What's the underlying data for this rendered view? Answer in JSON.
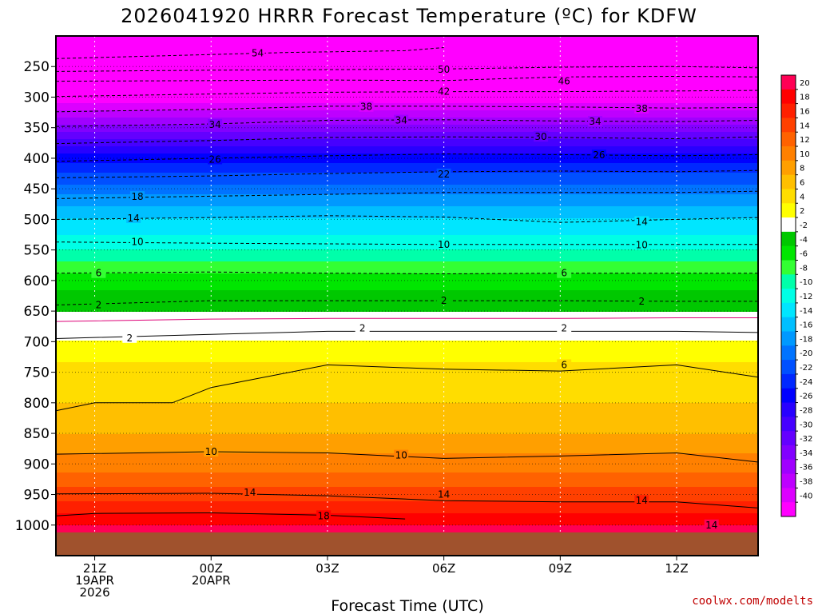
{
  "chart_data": {
    "type": "heatmap",
    "title": "2026041920 HRRR Forecast Temperature (ºC) for KDFW",
    "xlabel": "Forecast Time (UTC)",
    "ylabel": "",
    "credit": "coolwx.com/modelts",
    "x_range_hours": [
      -1,
      17.1
    ],
    "pressure_range_hpa": [
      1050,
      200
    ],
    "ground_pressure_hpa": 1012,
    "y_ticks": [
      250,
      300,
      350,
      400,
      450,
      500,
      550,
      600,
      650,
      700,
      750,
      800,
      850,
      900,
      950,
      1000
    ],
    "x_ticks": [
      {
        "hour": 0,
        "line1": "21Z",
        "line2": "19APR",
        "line3": "2026"
      },
      {
        "hour": 3,
        "line1": "00Z",
        "line2": "20APR",
        "line3": ""
      },
      {
        "hour": 6,
        "line1": "03Z",
        "line2": "",
        "line3": ""
      },
      {
        "hour": 9,
        "line1": "06Z",
        "line2": "",
        "line3": ""
      },
      {
        "hour": 12,
        "line1": "09Z",
        "line2": "",
        "line3": ""
      },
      {
        "hour": 15,
        "line1": "12Z",
        "line2": "",
        "line3": ""
      }
    ],
    "temperature_profile": [
      {
        "p": 1000,
        "t": 20
      },
      {
        "p": 950,
        "t": 15
      },
      {
        "p": 900,
        "t": 11
      },
      {
        "p": 850,
        "t": 8
      },
      {
        "p": 800,
        "t": 6
      },
      {
        "p": 750,
        "t": 5
      },
      {
        "p": 700,
        "t": 2
      },
      {
        "p": 670,
        "t": 0
      },
      {
        "p": 650,
        "t": -2
      },
      {
        "p": 600,
        "t": -5
      },
      {
        "p": 550,
        "t": -10
      },
      {
        "p": 500,
        "t": -14
      },
      {
        "p": 450,
        "t": -19
      },
      {
        "p": 400,
        "t": -25
      },
      {
        "p": 350,
        "t": -33
      },
      {
        "p": 300,
        "t": -42
      },
      {
        "p": 250,
        "t": -50
      },
      {
        "p": 200,
        "t": -56
      }
    ],
    "contours": [
      {
        "value": -54,
        "points": [
          [
            -1,
            237
          ],
          [
            2,
            232
          ],
          [
            5,
            227
          ],
          [
            8,
            224
          ],
          [
            9,
            219
          ]
        ]
      },
      {
        "value": -50,
        "points": [
          [
            -1,
            258
          ],
          [
            3,
            256
          ],
          [
            6,
            255
          ],
          [
            9,
            254
          ],
          [
            12,
            251
          ],
          [
            15,
            250
          ],
          [
            17.1,
            252
          ]
        ]
      },
      {
        "value": -46,
        "points": [
          [
            -1,
            274
          ],
          [
            3,
            273
          ],
          [
            6,
            272
          ],
          [
            9,
            273
          ],
          [
            12,
            267
          ],
          [
            15,
            266
          ],
          [
            17.1,
            267
          ]
        ]
      },
      {
        "value": -42,
        "points": [
          [
            -1,
            299
          ],
          [
            3,
            295
          ],
          [
            6,
            292
          ],
          [
            9,
            291
          ],
          [
            12,
            291
          ],
          [
            15,
            290
          ],
          [
            17.1,
            289
          ]
        ]
      },
      {
        "value": -38,
        "points": [
          [
            -1,
            324
          ],
          [
            3,
            320
          ],
          [
            6,
            315
          ],
          [
            9,
            315
          ],
          [
            12,
            316
          ],
          [
            15,
            318
          ],
          [
            17.1,
            317
          ]
        ]
      },
      {
        "value": -34,
        "points": [
          [
            -1,
            348
          ],
          [
            3,
            344
          ],
          [
            6,
            338
          ],
          [
            9,
            337
          ],
          [
            12,
            339
          ],
          [
            15,
            340
          ],
          [
            17.1,
            338
          ]
        ]
      },
      {
        "value": -30,
        "points": [
          [
            -1,
            376
          ],
          [
            3,
            371
          ],
          [
            6,
            366
          ],
          [
            9,
            365
          ],
          [
            12,
            366
          ],
          [
            15,
            368
          ],
          [
            17.1,
            365
          ]
        ]
      },
      {
        "value": -26,
        "points": [
          [
            -1,
            405
          ],
          [
            3,
            400
          ],
          [
            6,
            396
          ],
          [
            9,
            393
          ],
          [
            12,
            394
          ],
          [
            15,
            396
          ],
          [
            17.1,
            394
          ]
        ]
      },
      {
        "value": -22,
        "points": [
          [
            -1,
            432
          ],
          [
            3,
            429
          ],
          [
            6,
            425
          ],
          [
            9,
            422
          ],
          [
            12,
            421
          ],
          [
            15,
            422
          ],
          [
            17.1,
            420
          ]
        ]
      },
      {
        "value": -18,
        "points": [
          [
            -1,
            466
          ],
          [
            3,
            462
          ],
          [
            6,
            459
          ],
          [
            9,
            456
          ],
          [
            12,
            456
          ],
          [
            15,
            456
          ],
          [
            17.1,
            454
          ]
        ]
      },
      {
        "value": -14,
        "points": [
          [
            -1,
            500
          ],
          [
            3,
            497
          ],
          [
            6,
            494
          ],
          [
            9,
            496
          ],
          [
            12,
            505
          ],
          [
            15,
            500
          ],
          [
            17.1,
            497
          ]
        ]
      },
      {
        "value": -10,
        "points": [
          [
            -1,
            537
          ],
          [
            3,
            539
          ],
          [
            6,
            540
          ],
          [
            9,
            541
          ],
          [
            12,
            541
          ],
          [
            15,
            541
          ],
          [
            17.1,
            541
          ]
        ]
      },
      {
        "value": -6,
        "points": [
          [
            -1,
            588
          ],
          [
            3,
            586
          ],
          [
            6,
            588
          ],
          [
            9,
            589
          ],
          [
            12,
            588
          ],
          [
            15,
            588
          ],
          [
            17.1,
            588
          ]
        ]
      },
      {
        "value": -2,
        "points": [
          [
            -1,
            640
          ],
          [
            3,
            633
          ],
          [
            6,
            633
          ],
          [
            9,
            633
          ],
          [
            12,
            633
          ],
          [
            15,
            634
          ],
          [
            17.1,
            634
          ]
        ]
      },
      {
        "value": 0,
        "points": [
          [
            -1,
            667
          ],
          [
            3,
            663
          ],
          [
            6,
            662
          ],
          [
            9,
            662
          ],
          [
            12,
            662
          ],
          [
            15,
            661
          ],
          [
            17.1,
            661
          ]
        ]
      },
      {
        "value": 2,
        "points": [
          [
            -1,
            695
          ],
          [
            3,
            688
          ],
          [
            6,
            683
          ],
          [
            9,
            683
          ],
          [
            12,
            683
          ],
          [
            15,
            683
          ],
          [
            17.1,
            685
          ]
        ]
      },
      {
        "value": 6,
        "points": [
          [
            -1,
            813
          ],
          [
            0,
            800
          ],
          [
            2,
            800
          ],
          [
            3,
            775
          ],
          [
            6,
            738
          ],
          [
            9,
            745
          ],
          [
            12,
            748
          ],
          [
            15,
            738
          ],
          [
            17.1,
            758
          ]
        ]
      },
      {
        "value": 10,
        "points": [
          [
            -1,
            884
          ],
          [
            3,
            880
          ],
          [
            6,
            882
          ],
          [
            9,
            891
          ],
          [
            12,
            887
          ],
          [
            15,
            882
          ],
          [
            17.1,
            897
          ]
        ]
      },
      {
        "value": 14,
        "points": [
          [
            -1,
            949
          ],
          [
            3,
            948
          ],
          [
            6,
            952
          ],
          [
            9,
            960
          ],
          [
            12,
            962
          ],
          [
            15,
            962
          ],
          [
            17.1,
            972
          ]
        ]
      },
      {
        "value": 18,
        "points": [
          [
            -1,
            985
          ],
          [
            0,
            981
          ],
          [
            3,
            980
          ],
          [
            6,
            984
          ],
          [
            8,
            990
          ]
        ]
      }
    ],
    "contour_labels": [
      {
        "value": -54,
        "hour": 4.2,
        "p": 228
      },
      {
        "value": -50,
        "hour": 9,
        "p": 255
      },
      {
        "value": -46,
        "hour": 12.1,
        "p": 274
      },
      {
        "value": -42,
        "hour": 9,
        "p": 291
      },
      {
        "value": -38,
        "hour": 7,
        "p": 316
      },
      {
        "value": -38,
        "hour": 14.1,
        "p": 319
      },
      {
        "value": -34,
        "hour": 3.1,
        "p": 345
      },
      {
        "value": -34,
        "hour": 7.9,
        "p": 338
      },
      {
        "value": -34,
        "hour": 12.9,
        "p": 340
      },
      {
        "value": -30,
        "hour": 11.5,
        "p": 365
      },
      {
        "value": -26,
        "hour": 3.1,
        "p": 402
      },
      {
        "value": -26,
        "hour": 13,
        "p": 395
      },
      {
        "value": -22,
        "hour": 9,
        "p": 426
      },
      {
        "value": -18,
        "hour": 1.1,
        "p": 463
      },
      {
        "value": -14,
        "hour": 1,
        "p": 498
      },
      {
        "value": -14,
        "hour": 14.1,
        "p": 504
      },
      {
        "value": -10,
        "hour": 1.1,
        "p": 537
      },
      {
        "value": -10,
        "hour": 9,
        "p": 541
      },
      {
        "value": -10,
        "hour": 14.1,
        "p": 542
      },
      {
        "value": -6,
        "hour": 0.1,
        "p": 588
      },
      {
        "value": -6,
        "hour": 12.1,
        "p": 588
      },
      {
        "value": -2,
        "hour": 0.1,
        "p": 640
      },
      {
        "value": -2,
        "hour": 9,
        "p": 633
      },
      {
        "value": -2,
        "hour": 14.1,
        "p": 634
      },
      {
        "value": 2,
        "hour": 0.9,
        "p": 694
      },
      {
        "value": 2,
        "hour": 6.9,
        "p": 678
      },
      {
        "value": 2,
        "hour": 12.1,
        "p": 678
      },
      {
        "value": 6,
        "hour": 12.1,
        "p": 738
      },
      {
        "value": 10,
        "hour": 3,
        "p": 880
      },
      {
        "value": 10,
        "hour": 7.9,
        "p": 886
      },
      {
        "value": 14,
        "hour": 4,
        "p": 947
      },
      {
        "value": 14,
        "hour": 9,
        "p": 950
      },
      {
        "value": 14,
        "hour": 14.1,
        "p": 960
      },
      {
        "value": 14,
        "hour": 15.9,
        "p": 1000
      },
      {
        "value": 18,
        "hour": 5.9,
        "p": 985
      }
    ],
    "colorbar": {
      "labels": [
        20,
        18,
        16,
        14,
        12,
        10,
        8,
        6,
        4,
        2,
        -2,
        -4,
        -6,
        -8,
        -10,
        -12,
        -14,
        -16,
        -18,
        -20,
        -22,
        -24,
        -26,
        -28,
        -30,
        -32,
        -34,
        -36,
        -38,
        -40
      ],
      "colors": [
        "#ff0055",
        "#ff0000",
        "#ff2000",
        "#ff4000",
        "#ff6200",
        "#ff8000",
        "#ff9f00",
        "#ffbf00",
        "#ffdd00",
        "#ffff00",
        "#ffffff",
        "#00c800",
        "#00e600",
        "#33ff33",
        "#00ffaa",
        "#00ffe6",
        "#00e6ff",
        "#00bfff",
        "#0099ff",
        "#0073ff",
        "#0050ff",
        "#0028ff",
        "#0000ff",
        "#2800ff",
        "#4600ff",
        "#6400ff",
        "#8200ff",
        "#a000ff",
        "#be00ff",
        "#dc00ff",
        "#ff00ff"
      ]
    }
  }
}
